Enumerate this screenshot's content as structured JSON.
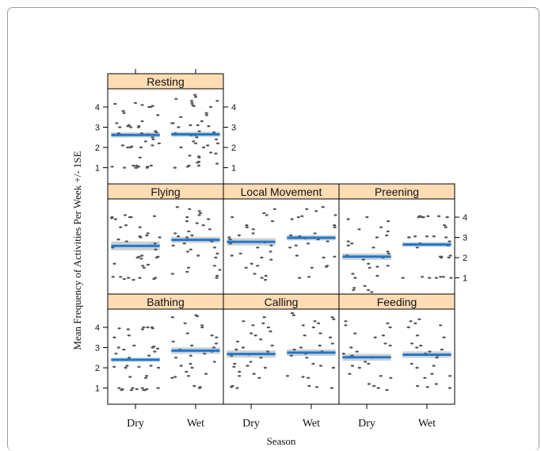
{
  "chart_data": {
    "type": "scatter",
    "subtype": "lattice strip plot with fitted mean and +/- 1 SE band",
    "xlabel": "Season",
    "ylabel": "Mean Frequency of Activities Per Week +/- 1SE",
    "categories": [
      "Dry",
      "Wet"
    ],
    "yticks": [
      1,
      2,
      3,
      4
    ],
    "ylim": [
      0.2,
      4.9
    ],
    "colors": {
      "strip": "#ffdcb4",
      "mean_line": "#1f78d0",
      "se_band": "#c8c8c8",
      "points": "#555555"
    },
    "panels": [
      {
        "name": "Resting",
        "means": {
          "Dry": 2.62,
          "Wet": 2.65
        },
        "se": {
          "Dry": 0.13,
          "Wet": 0.13
        },
        "points": {
          "Dry": [
            1.0,
            1.05,
            1.1,
            1.0,
            1.1,
            1.05,
            1.0,
            1.1,
            1.0,
            1.05,
            1.5,
            2.0,
            2.0,
            2.1,
            2.0,
            2.05,
            2.1,
            2.2,
            2.3,
            2.4,
            2.5,
            2.6,
            2.7,
            2.75,
            2.6,
            2.65,
            2.7,
            2.8,
            3.0,
            3.05,
            3.0,
            3.1,
            3.0,
            3.05,
            3.2,
            3.3,
            3.6,
            3.8,
            3.7,
            4.0,
            4.05,
            4.1,
            4.15,
            4.2,
            4.0
          ],
          "Wet": [
            1.0,
            1.1,
            1.05,
            1.2,
            1.25,
            1.3,
            1.1,
            1.5,
            1.55,
            1.6,
            1.7,
            1.75,
            2.0,
            2.1,
            2.0,
            2.2,
            2.3,
            2.4,
            2.2,
            2.5,
            2.6,
            2.65,
            2.7,
            2.6,
            2.75,
            2.8,
            3.0,
            3.1,
            3.05,
            3.2,
            3.3,
            3.2,
            3.1,
            3.5,
            3.6,
            3.7,
            4.0,
            4.05,
            4.1,
            4.2,
            4.3,
            4.4,
            4.5,
            4.6,
            4.3
          ]
        }
      },
      {
        "name": "Flying",
        "means": {
          "Dry": 2.58,
          "Wet": 2.88
        },
        "se": {
          "Dry": 0.22,
          "Wet": 0.15
        },
        "points": {
          "Dry": [
            0.9,
            0.95,
            1.0,
            1.05,
            1.0,
            0.95,
            1.05,
            1.0,
            1.6,
            1.65,
            1.7,
            1.5,
            2.0,
            2.05,
            2.0,
            2.1,
            1.95,
            2.05,
            2.4,
            2.5,
            2.6,
            2.7,
            2.8,
            2.9,
            3.0,
            3.05,
            3.1,
            3.0,
            3.2,
            3.5,
            3.6,
            3.5,
            3.9,
            4.0,
            4.05,
            4.0,
            4.1,
            3.95,
            4.0
          ],
          "Wet": [
            1.0,
            1.1,
            1.2,
            1.3,
            1.5,
            1.6,
            1.4,
            2.0,
            2.1,
            2.2,
            2.3,
            2.5,
            2.6,
            2.7,
            2.8,
            2.9,
            3.0,
            3.1,
            3.05,
            3.2,
            3.3,
            3.4,
            3.6,
            3.7,
            3.9,
            4.0,
            4.1,
            4.2,
            4.3,
            4.4,
            4.5,
            3.8,
            2.4
          ]
        }
      },
      {
        "name": "Local Movement",
        "means": {
          "Dry": 2.78,
          "Wet": 2.98
        },
        "se": {
          "Dry": 0.18,
          "Wet": 0.13
        },
        "points": {
          "Dry": [
            0.9,
            1.0,
            1.1,
            1.2,
            1.5,
            1.6,
            1.7,
            1.9,
            2.0,
            2.1,
            2.2,
            2.3,
            2.5,
            2.6,
            2.7,
            2.8,
            2.9,
            3.0,
            3.1,
            3.2,
            3.4,
            3.5,
            3.6,
            3.8,
            4.0,
            4.1,
            4.2,
            4.4,
            2.75
          ],
          "Wet": [
            1.0,
            1.05,
            1.5,
            1.55,
            1.6,
            2.0,
            2.05,
            2.1,
            2.5,
            2.6,
            2.7,
            2.8,
            2.9,
            3.0,
            3.05,
            3.1,
            3.0,
            3.2,
            3.5,
            3.6,
            3.9,
            4.0,
            4.05,
            4.1,
            4.3,
            4.4,
            4.5,
            2.95
          ]
        }
      },
      {
        "name": "Preening",
        "means": {
          "Dry": 2.05,
          "Wet": 2.65
        },
        "se": {
          "Dry": 0.16,
          "Wet": 0.12
        },
        "points": {
          "Dry": [
            0.3,
            0.4,
            0.5,
            0.6,
            0.4,
            1.0,
            1.1,
            1.2,
            1.5,
            1.6,
            1.55,
            1.7,
            1.9,
            2.0,
            2.05,
            2.1,
            2.2,
            2.3,
            2.5,
            2.6,
            2.7,
            2.8,
            3.0,
            3.1,
            3.3,
            3.4,
            3.5,
            3.8,
            3.9,
            4.0
          ],
          "Wet": [
            1.0,
            1.05,
            1.0,
            1.05,
            1.0,
            1.05,
            1.0,
            2.0,
            2.05,
            2.1,
            2.0,
            2.05,
            2.5,
            2.6,
            2.65,
            2.7,
            2.8,
            3.0,
            3.05,
            3.0,
            3.05,
            3.0,
            3.05,
            3.5,
            3.6,
            4.0,
            4.05,
            4.0,
            4.05,
            4.0,
            4.05,
            4.0,
            4.05
          ]
        }
      },
      {
        "name": "Bathing",
        "means": {
          "Dry": 2.4,
          "Wet": 2.85
        },
        "se": {
          "Dry": 0.1,
          "Wet": 0.16
        },
        "points": {
          "Dry": [
            0.9,
            0.95,
            1.0,
            0.9,
            0.95,
            1.0,
            0.9,
            0.95,
            1.0,
            0.9,
            1.0,
            1.5,
            1.55,
            1.6,
            2.0,
            2.05,
            2.1,
            2.0,
            2.05,
            2.1,
            2.4,
            2.5,
            2.6,
            2.7,
            2.8,
            2.9,
            3.0,
            2.95,
            3.0,
            3.05,
            3.1,
            3.5,
            3.6,
            4.0,
            3.95,
            3.9,
            4.0,
            3.95,
            3.9,
            4.0
          ],
          "Wet": [
            1.0,
            1.05,
            1.1,
            1.5,
            1.55,
            1.6,
            1.7,
            1.8,
            2.0,
            2.1,
            2.2,
            2.3,
            2.5,
            2.6,
            2.7,
            2.8,
            2.9,
            3.0,
            3.1,
            3.2,
            3.3,
            3.5,
            3.6,
            3.7,
            4.0,
            4.1,
            4.2,
            4.5,
            4.6,
            4.55
          ]
        }
      },
      {
        "name": "Calling",
        "means": {
          "Dry": 2.68,
          "Wet": 2.75
        },
        "se": {
          "Dry": 0.18,
          "Wet": 0.16
        },
        "points": {
          "Dry": [
            1.0,
            1.05,
            1.1,
            1.5,
            1.6,
            1.7,
            1.8,
            2.0,
            2.05,
            2.1,
            2.2,
            2.3,
            2.5,
            2.6,
            2.7,
            2.8,
            2.9,
            3.0,
            3.1,
            3.3,
            3.4,
            3.6,
            3.7,
            3.8,
            4.0,
            4.1,
            4.2,
            4.3,
            4.5,
            2.65
          ],
          "Wet": [
            1.0,
            1.05,
            1.1,
            1.5,
            1.55,
            1.6,
            2.0,
            2.1,
            2.2,
            2.5,
            2.6,
            2.7,
            2.8,
            2.9,
            3.0,
            3.1,
            3.2,
            3.5,
            3.6,
            3.7,
            4.0,
            4.1,
            4.2,
            4.3,
            4.4,
            4.5,
            4.6,
            4.7,
            2.75
          ]
        }
      },
      {
        "name": "Feeding",
        "means": {
          "Dry": 2.52,
          "Wet": 2.65
        },
        "se": {
          "Dry": 0.17,
          "Wet": 0.16
        },
        "points": {
          "Dry": [
            0.9,
            1.0,
            1.1,
            1.2,
            1.5,
            1.6,
            1.7,
            2.0,
            2.1,
            2.2,
            2.3,
            2.5,
            2.6,
            2.7,
            2.8,
            3.0,
            3.1,
            3.2,
            3.5,
            3.6,
            3.7,
            4.0,
            4.1,
            4.2,
            4.3,
            2.55
          ],
          "Wet": [
            1.0,
            1.05,
            1.1,
            1.2,
            1.5,
            1.6,
            1.7,
            2.0,
            2.1,
            2.2,
            2.5,
            2.6,
            2.7,
            2.8,
            2.9,
            3.0,
            3.1,
            3.2,
            3.5,
            3.6,
            4.0,
            4.1,
            4.2,
            4.3,
            4.4,
            2.65
          ]
        }
      }
    ]
  }
}
